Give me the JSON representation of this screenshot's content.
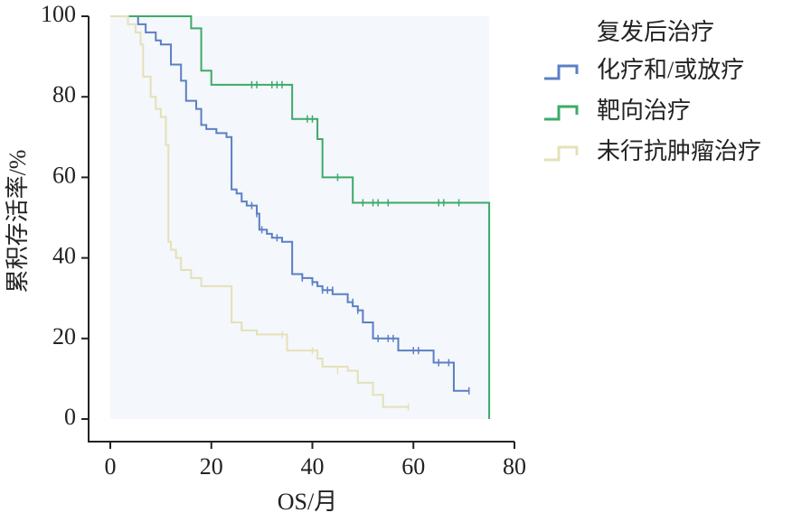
{
  "chart_data": {
    "type": "step",
    "x_label": "OS/月",
    "y_label": "累积存活率/%",
    "legend_title": "复发后治疗",
    "legend_position": "right",
    "xlim": [
      0,
      80
    ],
    "ylim": [
      0,
      100
    ],
    "xticks": [
      0,
      20,
      40,
      60,
      80
    ],
    "yticks": [
      0,
      20,
      40,
      60,
      80,
      100
    ],
    "plot_background": "#f4f7fb",
    "series": [
      {
        "name": "化疗和/或放疗",
        "color": "#5b7fc4",
        "x": [
          0,
          5.5,
          7,
          9,
          10,
          12,
          14,
          15,
          17,
          18,
          19,
          21,
          23,
          24,
          25,
          26,
          27,
          29,
          29.5,
          31,
          32,
          34,
          36,
          38,
          40,
          41,
          42,
          44,
          47,
          48,
          49,
          50,
          52,
          57,
          64,
          68,
          71
        ],
        "values": [
          100,
          98,
          96,
          94,
          93,
          88,
          84,
          79,
          77,
          73,
          72,
          71,
          70,
          57,
          56,
          54,
          53,
          51,
          47,
          46,
          45,
          44,
          36,
          35,
          34,
          33,
          32,
          31,
          29,
          28,
          27,
          24,
          20,
          17,
          14,
          7,
          7
        ],
        "censor_x": [
          28,
          29,
          30,
          33,
          38,
          40,
          42,
          43,
          44,
          48,
          49,
          53,
          55,
          56,
          60,
          61,
          65,
          67,
          71
        ],
        "censor_y": [
          53,
          51,
          47,
          45,
          35,
          34,
          32,
          32,
          32,
          29,
          27,
          20,
          20,
          20,
          17,
          17,
          14,
          14,
          7
        ]
      },
      {
        "name": "靶向治疗",
        "color": "#3daa6a",
        "x": [
          0,
          16,
          18,
          20,
          36,
          41,
          42,
          48,
          75
        ],
        "values": [
          100,
          97,
          86.5,
          83,
          74.5,
          69.5,
          60,
          53.7,
          0
        ],
        "censor_x": [
          28,
          29,
          32,
          33,
          34,
          39,
          40,
          45,
          50,
          52,
          53,
          55,
          65,
          66,
          69
        ],
        "censor_y": [
          83,
          83,
          83,
          83,
          83,
          74.5,
          74.5,
          60,
          53.7,
          53.7,
          53.7,
          53.7,
          53.7,
          53.7,
          53.7
        ]
      },
      {
        "name": "未行抗肿瘤治疗",
        "color": "#e4e1b8",
        "x": [
          0,
          3.5,
          5,
          6,
          6.5,
          8,
          9,
          10,
          11,
          11.5,
          12,
          13,
          14,
          16,
          18,
          24,
          26,
          29,
          35,
          41,
          42,
          47,
          49,
          52,
          54,
          59
        ],
        "values": [
          100,
          98,
          96,
          93,
          85,
          80,
          77,
          75,
          68,
          44,
          42,
          40,
          37,
          35,
          33,
          24,
          22,
          21,
          17,
          15,
          13,
          12,
          9,
          6,
          3,
          3
        ],
        "censor_x": [
          34,
          40,
          45,
          59
        ],
        "censor_y": [
          21,
          17,
          12,
          3
        ]
      }
    ]
  }
}
